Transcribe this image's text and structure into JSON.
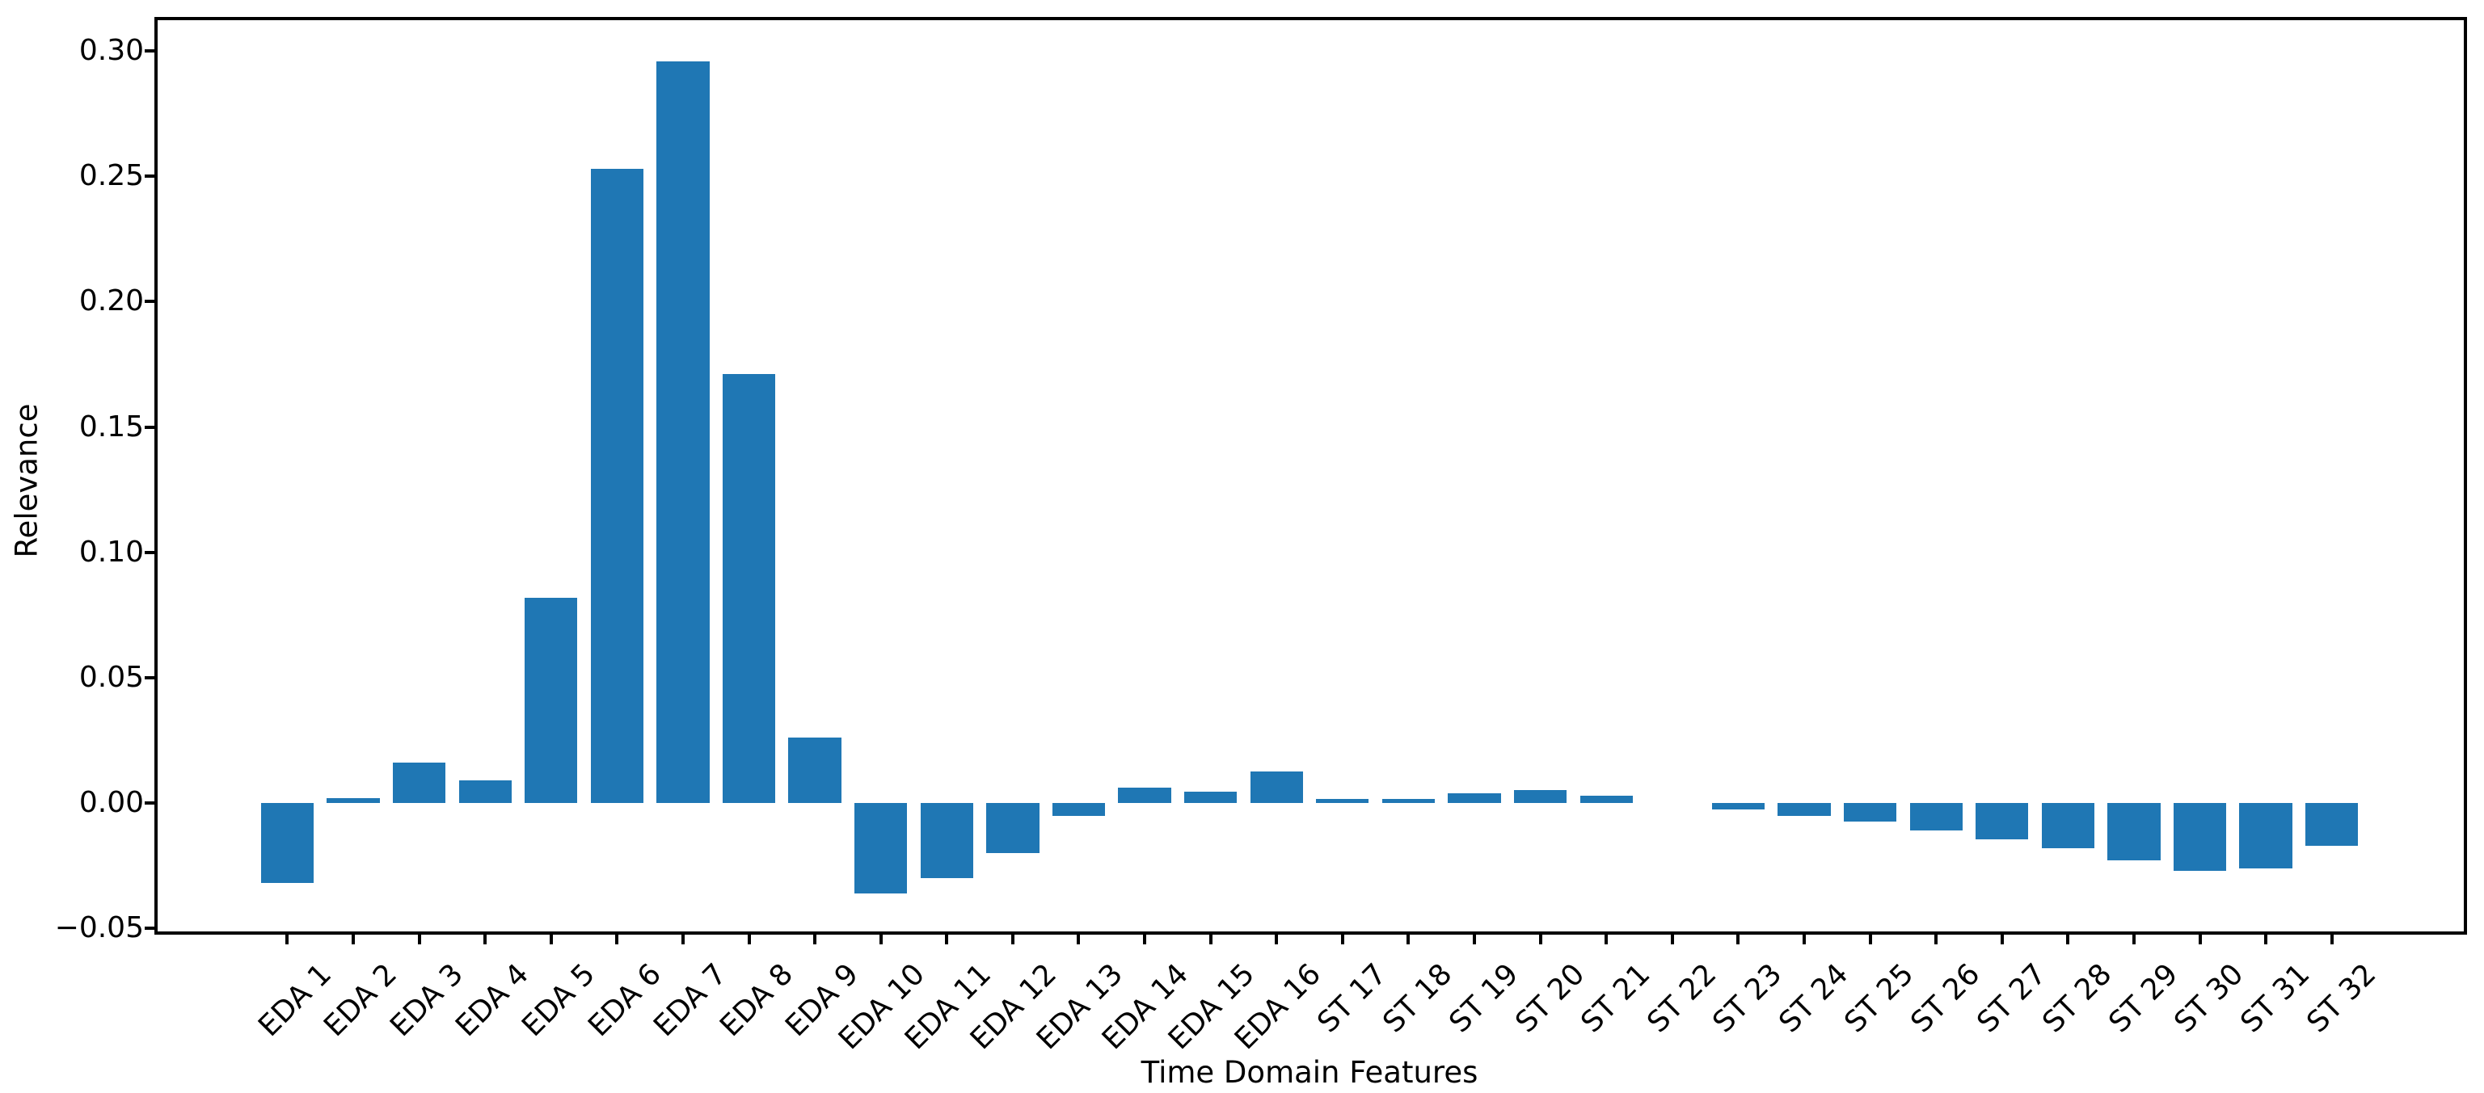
{
  "chart_data": {
    "type": "bar",
    "title": "",
    "xlabel": "Time Domain Features",
    "ylabel": "Relevance",
    "categories": [
      "EDA 1",
      "EDA 2",
      "EDA 3",
      "EDA 4",
      "EDA 5",
      "EDA 6",
      "EDA 7",
      "EDA 8",
      "EDA 9",
      "EDA 10",
      "EDA 11",
      "EDA 12",
      "EDA 13",
      "EDA 14",
      "EDA 15",
      "EDA 16",
      "ST 17",
      "ST 18",
      "ST 19",
      "ST 20",
      "ST 21",
      "ST 22",
      "ST 23",
      "ST 24",
      "ST 25",
      "ST 26",
      "ST 27",
      "ST 28",
      "ST 29",
      "ST 30",
      "ST 31",
      "ST 32"
    ],
    "values": [
      -0.032,
      0.002,
      0.016,
      0.009,
      0.082,
      0.253,
      0.296,
      0.171,
      0.026,
      -0.036,
      -0.03,
      -0.02,
      -0.005,
      0.006,
      0.0045,
      0.0125,
      0.0015,
      0.0015,
      0.004,
      0.005,
      0.003,
      0.0,
      -0.0025,
      -0.005,
      -0.0075,
      -0.011,
      -0.0145,
      -0.018,
      -0.023,
      -0.027,
      -0.026,
      -0.017
    ],
    "bar_color": "#1f77b4",
    "axis_color": "#000000",
    "grid": false,
    "legend": null,
    "x_tick_rotation_deg": 45,
    "ylim": [
      -0.053,
      0.313
    ],
    "yticks": {
      "values": [
        0.3,
        0.25,
        0.2,
        0.15,
        0.1,
        0.05,
        0.0,
        -0.05
      ],
      "labels": [
        "0.30",
        "0.25",
        "0.20",
        "0.15",
        "0.10",
        "0.05",
        "0.00",
        "−0.05"
      ]
    }
  }
}
